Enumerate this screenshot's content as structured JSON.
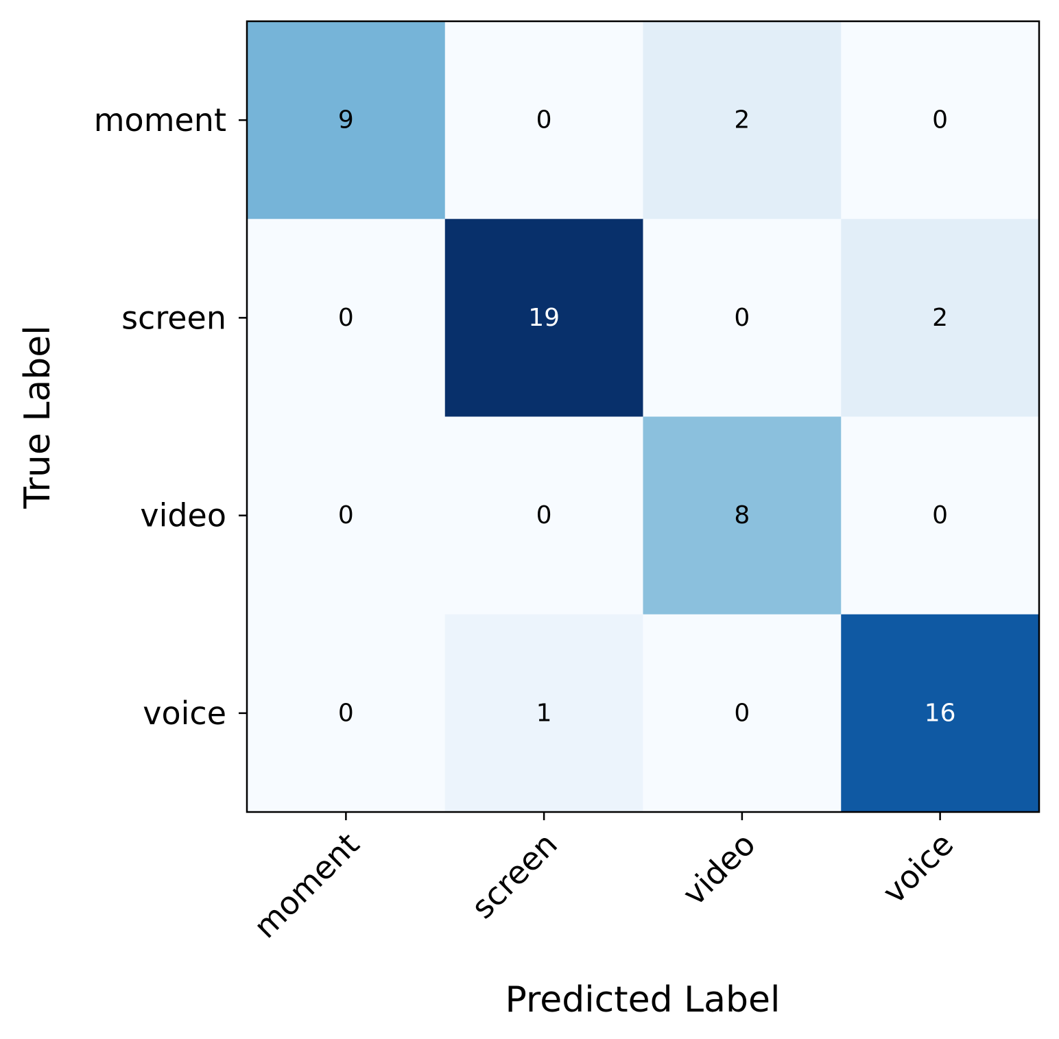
{
  "chart_data": {
    "type": "heatmap",
    "title": "",
    "xlabel": "Predicted Label",
    "ylabel": "True Label",
    "x_categories": [
      "moment",
      "screen",
      "video",
      "voice"
    ],
    "y_categories": [
      "moment",
      "screen",
      "video",
      "voice"
    ],
    "values": [
      [
        9,
        0,
        2,
        0
      ],
      [
        0,
        19,
        0,
        2
      ],
      [
        0,
        0,
        8,
        0
      ],
      [
        0,
        1,
        0,
        16
      ]
    ],
    "colormap": "Blues",
    "value_range": [
      0,
      19
    ],
    "low_color": "#f7fbff",
    "high_color": "#08306b",
    "annotation_dark_color": "#000000",
    "annotation_light_color": "#ffffff",
    "grid": false,
    "colorbar": false
  }
}
